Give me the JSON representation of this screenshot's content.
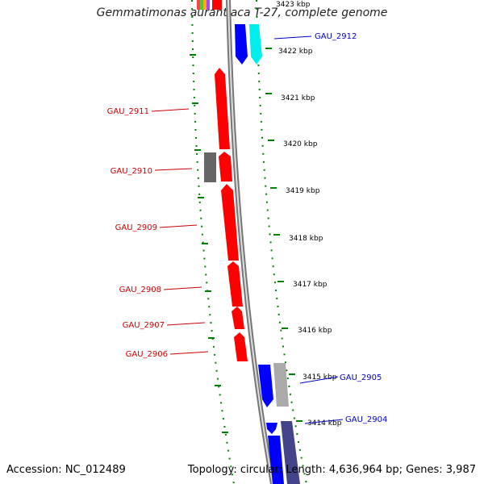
{
  "title": "Gemmatimonas aurantiaca T-27, complete genome",
  "footer": {
    "accession": "Accession: NC_012489",
    "summary": "Topology: circular; Length: 4,636,964 bp; Genes: 3,987"
  },
  "colors": {
    "forward_gene": "#0000ff",
    "reverse_gene": "#ff0000",
    "other_cyan": "#00ffff",
    "other_grey": "#888888",
    "tick_green": "#008000",
    "label_red": "#cc0000",
    "label_blue": "#0000cc"
  },
  "scale_labels": [
    "3423 kbp",
    "3422 kbp",
    "3421 kbp",
    "3420 kbp",
    "3419 kbp",
    "3418 kbp",
    "3417 kbp",
    "3416 kbp",
    "3415 kbp",
    "3414 kbp"
  ],
  "gene_labels": [
    {
      "name": "GAU_2912",
      "strand": "forward"
    },
    {
      "name": "GAU_2911",
      "strand": "reverse"
    },
    {
      "name": "GAU_2910",
      "strand": "reverse"
    },
    {
      "name": "GAU_2909",
      "strand": "reverse"
    },
    {
      "name": "GAU_2908",
      "strand": "reverse"
    },
    {
      "name": "GAU_2907",
      "strand": "reverse"
    },
    {
      "name": "GAU_2906",
      "strand": "reverse"
    },
    {
      "name": "GAU_2905",
      "strand": "forward"
    },
    {
      "name": "GAU_2904",
      "strand": "forward"
    }
  ]
}
